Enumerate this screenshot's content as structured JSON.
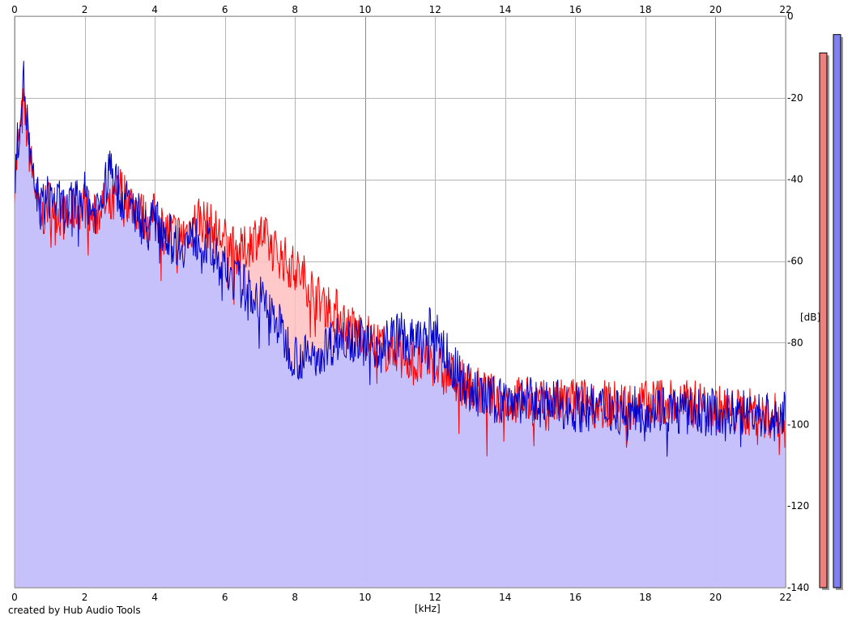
{
  "chart_data": {
    "type": "area",
    "xlabel": "[kHz]",
    "ylabel": "[dB]",
    "xlim": [
      0,
      22
    ],
    "ylim": [
      -140,
      0
    ],
    "x_ticks": [
      0,
      2,
      4,
      6,
      8,
      10,
      12,
      14,
      16,
      18,
      20,
      22
    ],
    "y_ticks": [
      0,
      -20,
      -40,
      -60,
      -80,
      -100,
      -120,
      -140
    ],
    "grid": true,
    "legend": "none",
    "series": [
      {
        "color": "#ff0000",
        "fill": "#ffc0c0",
        "x": [
          0,
          0.25,
          0.5,
          0.75,
          1,
          1.25,
          1.5,
          1.75,
          2,
          2.25,
          2.5,
          2.75,
          3,
          3.25,
          3.5,
          3.75,
          4,
          4.25,
          4.5,
          4.75,
          5,
          5.25,
          5.5,
          5.75,
          6,
          6.25,
          6.5,
          6.75,
          7,
          7.25,
          7.5,
          7.75,
          8,
          8.25,
          8.5,
          8.75,
          9,
          9.25,
          9.5,
          9.75,
          10,
          10.25,
          10.5,
          10.75,
          11,
          11.25,
          11.5,
          11.75,
          12,
          12.25,
          12.5,
          12.75,
          13,
          13.25,
          13.5,
          13.75,
          14,
          14.5,
          15,
          15.5,
          16,
          16.5,
          17,
          17.5,
          18,
          18.5,
          19,
          19.5,
          20,
          20.5,
          21,
          21.5,
          22
        ],
        "values": [
          -40,
          -22,
          -38,
          -50,
          -45,
          -48,
          -50,
          -47,
          -46,
          -50,
          -46,
          -48,
          -42,
          -45,
          -47,
          -50,
          -49,
          -52,
          -53,
          -54,
          -52,
          -49,
          -51,
          -53,
          -55,
          -57,
          -58,
          -55,
          -53,
          -56,
          -58,
          -60,
          -62,
          -64,
          -67,
          -70,
          -71,
          -73,
          -76,
          -77,
          -78,
          -80,
          -81,
          -82,
          -81,
          -84,
          -86,
          -84,
          -85,
          -88,
          -88,
          -90,
          -91,
          -92,
          -93,
          -94,
          -94,
          -94,
          -95,
          -95,
          -94,
          -95,
          -95,
          -95,
          -95,
          -94,
          -95,
          -95,
          -96,
          -97,
          -97,
          -98,
          -98
        ]
      },
      {
        "color": "#0000c8",
        "fill": "#c0c0ff",
        "x": [
          0,
          0.25,
          0.5,
          0.75,
          1,
          1.25,
          1.5,
          1.75,
          2,
          2.25,
          2.5,
          2.75,
          3,
          3.25,
          3.5,
          3.75,
          4,
          4.25,
          4.5,
          4.75,
          5,
          5.25,
          5.5,
          5.75,
          6,
          6.25,
          6.5,
          6.75,
          7,
          7.25,
          7.5,
          7.75,
          8,
          8.25,
          8.5,
          8.75,
          9,
          9.25,
          9.5,
          9.75,
          10,
          10.25,
          10.5,
          10.75,
          11,
          11.25,
          11.5,
          11.75,
          12,
          12.25,
          12.5,
          12.75,
          13,
          13.25,
          13.5,
          13.75,
          14,
          14.5,
          15,
          15.5,
          16,
          16.5,
          17,
          17.5,
          18,
          18.5,
          19,
          19.5,
          20,
          20.5,
          21,
          21.5,
          22
        ],
        "values": [
          -40,
          -15,
          -40,
          -47,
          -44,
          -46,
          -48,
          -45,
          -44,
          -48,
          -45,
          -36,
          -44,
          -46,
          -48,
          -52,
          -50,
          -52,
          -55,
          -56,
          -55,
          -54,
          -56,
          -60,
          -62,
          -64,
          -66,
          -68,
          -69,
          -72,
          -75,
          -80,
          -83,
          -84,
          -83,
          -82,
          -80,
          -79,
          -78,
          -79,
          -80,
          -81,
          -80,
          -79,
          -78,
          -80,
          -80,
          -78,
          -76,
          -82,
          -86,
          -89,
          -91,
          -93,
          -94,
          -94,
          -94,
          -94,
          -95,
          -95,
          -96,
          -96,
          -96,
          -97,
          -96,
          -96,
          -97,
          -97,
          -97,
          -97,
          -97,
          -98,
          -98
        ]
      }
    ],
    "level_meters": [
      {
        "color": "#f08080",
        "peak_db": -9
      },
      {
        "color": "#8080f0",
        "peak_db": -4.5
      }
    ]
  },
  "credit": "created by Hub Audio Tools"
}
